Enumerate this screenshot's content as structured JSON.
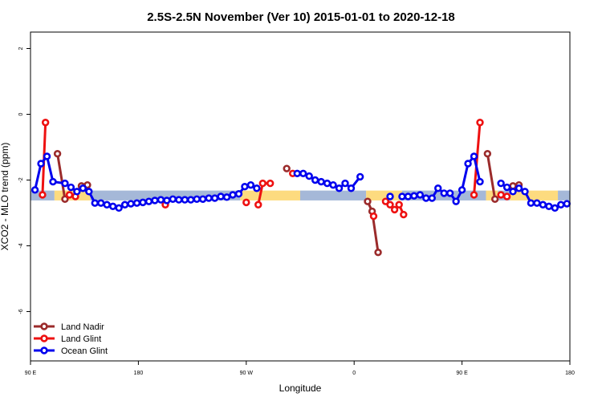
{
  "chart_data": {
    "type": "line",
    "title": "2.5S-2.5N November (Ver 10)   2015-01-01 to 2020-12-18",
    "xlabel": "Longitude",
    "ylabel": "XCO2 - MLO trend (ppm)",
    "xlim": [
      0,
      360
    ],
    "ylim": [
      -7.5,
      2.5
    ],
    "x_ticks": [
      {
        "value": 0,
        "label": "90 E"
      },
      {
        "value": 72,
        "label": "180"
      },
      {
        "value": 144,
        "label": "90 W"
      },
      {
        "value": 216,
        "label": "0"
      },
      {
        "value": 288,
        "label": "90 E"
      },
      {
        "value": 360,
        "label": "180"
      }
    ],
    "y_ticks": [
      {
        "value": 2,
        "label": "2"
      },
      {
        "value": 0,
        "label": "0"
      },
      {
        "value": -2,
        "label": "-2"
      },
      {
        "value": -4,
        "label": "-4"
      },
      {
        "value": -6,
        "label": "-6"
      }
    ],
    "band": {
      "y_range": [
        -2.62,
        -2.32
      ],
      "segments": [
        {
          "x0": 0,
          "x1": 16,
          "color": "#a5b8d8"
        },
        {
          "x0": 16,
          "x1": 40,
          "color": "#fddb7f"
        },
        {
          "x0": 40,
          "x1": 140,
          "color": "#a5b8d8"
        },
        {
          "x0": 140,
          "x1": 180,
          "color": "#fddb7f"
        },
        {
          "x0": 180,
          "x1": 224,
          "color": "#a5b8d8"
        },
        {
          "x0": 224,
          "x1": 248,
          "color": "#fddb7f"
        },
        {
          "x0": 248,
          "x1": 304,
          "color": "#a5b8d8"
        },
        {
          "x0": 304,
          "x1": 312,
          "color": "#fddb7f"
        },
        {
          "x0": 312,
          "x1": 320,
          "color": "#a5b8d8"
        },
        {
          "x0": 320,
          "x1": 352,
          "color": "#fddb7f"
        },
        {
          "x0": 352,
          "x1": 360,
          "color": "#a5b8d8"
        }
      ]
    },
    "legend_position": "bottom-left",
    "series": [
      {
        "name": "Land Nadir",
        "color": "#9b2b2b",
        "segments": [
          [
            [
              18,
              -1.2
            ],
            [
              23,
              -2.58
            ]
          ],
          [
            [
              34,
              -2.18
            ],
            [
              38,
              -2.15
            ]
          ],
          [
            [
              171,
              -1.65
            ]
          ],
          [
            [
              225,
              -2.65
            ],
            [
              228,
              -2.95
            ],
            [
              232,
              -4.2
            ]
          ],
          [
            [
              305,
              -1.2
            ],
            [
              310,
              -2.58
            ]
          ],
          [
            [
              322,
              -2.18
            ],
            [
              326,
              -2.15
            ]
          ]
        ]
      },
      {
        "name": "Land Glint",
        "color": "#ee1111",
        "segments": [
          [
            [
              8,
              -2.45
            ],
            [
              10,
              -0.25
            ]
          ],
          [
            [
              26,
              -2.45
            ],
            [
              30,
              -2.5
            ]
          ],
          [
            [
              90,
              -2.75
            ]
          ],
          [
            [
              144,
              -2.68
            ]
          ],
          [
            [
              152,
              -2.75
            ],
            [
              155,
              -2.1
            ],
            [
              160,
              -2.1
            ]
          ],
          [
            [
              175,
              -1.8
            ]
          ],
          [
            [
              229,
              -3.1
            ]
          ],
          [
            [
              237,
              -2.65
            ],
            [
              240,
              -2.75
            ],
            [
              243,
              -2.9
            ],
            [
              246,
              -2.75
            ],
            [
              249,
              -3.05
            ]
          ],
          [
            [
              296,
              -2.45
            ],
            [
              300,
              -0.25
            ]
          ],
          [
            [
              314,
              -2.45
            ],
            [
              318,
              -2.5
            ]
          ]
        ]
      },
      {
        "name": "Ocean Glint",
        "color": "#0000ee",
        "segments": [
          [
            [
              3,
              -2.3
            ],
            [
              7,
              -1.5
            ],
            [
              11,
              -1.28
            ],
            [
              15,
              -2.05
            ],
            [
              23,
              -2.1
            ],
            [
              27,
              -2.22
            ],
            [
              31,
              -2.35
            ],
            [
              35,
              -2.25
            ],
            [
              39,
              -2.35
            ],
            [
              43,
              -2.7
            ],
            [
              47,
              -2.7
            ],
            [
              51,
              -2.75
            ],
            [
              55,
              -2.8
            ],
            [
              59,
              -2.85
            ],
            [
              63,
              -2.75
            ],
            [
              67,
              -2.72
            ],
            [
              71,
              -2.7
            ],
            [
              75,
              -2.68
            ],
            [
              79,
              -2.65
            ],
            [
              83,
              -2.62
            ],
            [
              87,
              -2.6
            ],
            [
              91,
              -2.62
            ],
            [
              95,
              -2.58
            ],
            [
              99,
              -2.6
            ],
            [
              103,
              -2.6
            ],
            [
              107,
              -2.6
            ],
            [
              111,
              -2.58
            ],
            [
              115,
              -2.58
            ],
            [
              119,
              -2.55
            ],
            [
              123,
              -2.55
            ],
            [
              127,
              -2.5
            ],
            [
              131,
              -2.52
            ],
            [
              135,
              -2.45
            ],
            [
              139,
              -2.42
            ],
            [
              143,
              -2.2
            ],
            [
              147,
              -2.15
            ],
            [
              151,
              -2.25
            ]
          ],
          [
            [
              178,
              -1.8
            ],
            [
              182,
              -1.8
            ],
            [
              186,
              -1.88
            ],
            [
              190,
              -2.0
            ],
            [
              194,
              -2.05
            ],
            [
              198,
              -2.1
            ],
            [
              202,
              -2.15
            ],
            [
              206,
              -2.25
            ],
            [
              210,
              -2.1
            ],
            [
              214,
              -2.25
            ],
            [
              220,
              -1.9
            ]
          ],
          [
            [
              240,
              -2.5
            ]
          ],
          [
            [
              248,
              -2.5
            ],
            [
              252,
              -2.5
            ],
            [
              256,
              -2.48
            ],
            [
              260,
              -2.45
            ],
            [
              264,
              -2.55
            ],
            [
              268,
              -2.55
            ],
            [
              272,
              -2.25
            ],
            [
              276,
              -2.4
            ],
            [
              280,
              -2.4
            ],
            [
              284,
              -2.65
            ],
            [
              288,
              -2.3
            ],
            [
              292,
              -1.5
            ],
            [
              296,
              -1.28
            ],
            [
              300,
              -2.05
            ]
          ],
          [
            [
              314,
              -2.1
            ],
            [
              318,
              -2.22
            ],
            [
              322,
              -2.35
            ],
            [
              326,
              -2.25
            ],
            [
              330,
              -2.35
            ],
            [
              334,
              -2.7
            ],
            [
              338,
              -2.7
            ],
            [
              342,
              -2.75
            ],
            [
              346,
              -2.8
            ],
            [
              350,
              -2.85
            ],
            [
              354,
              -2.75
            ],
            [
              358,
              -2.72
            ]
          ]
        ]
      }
    ]
  }
}
